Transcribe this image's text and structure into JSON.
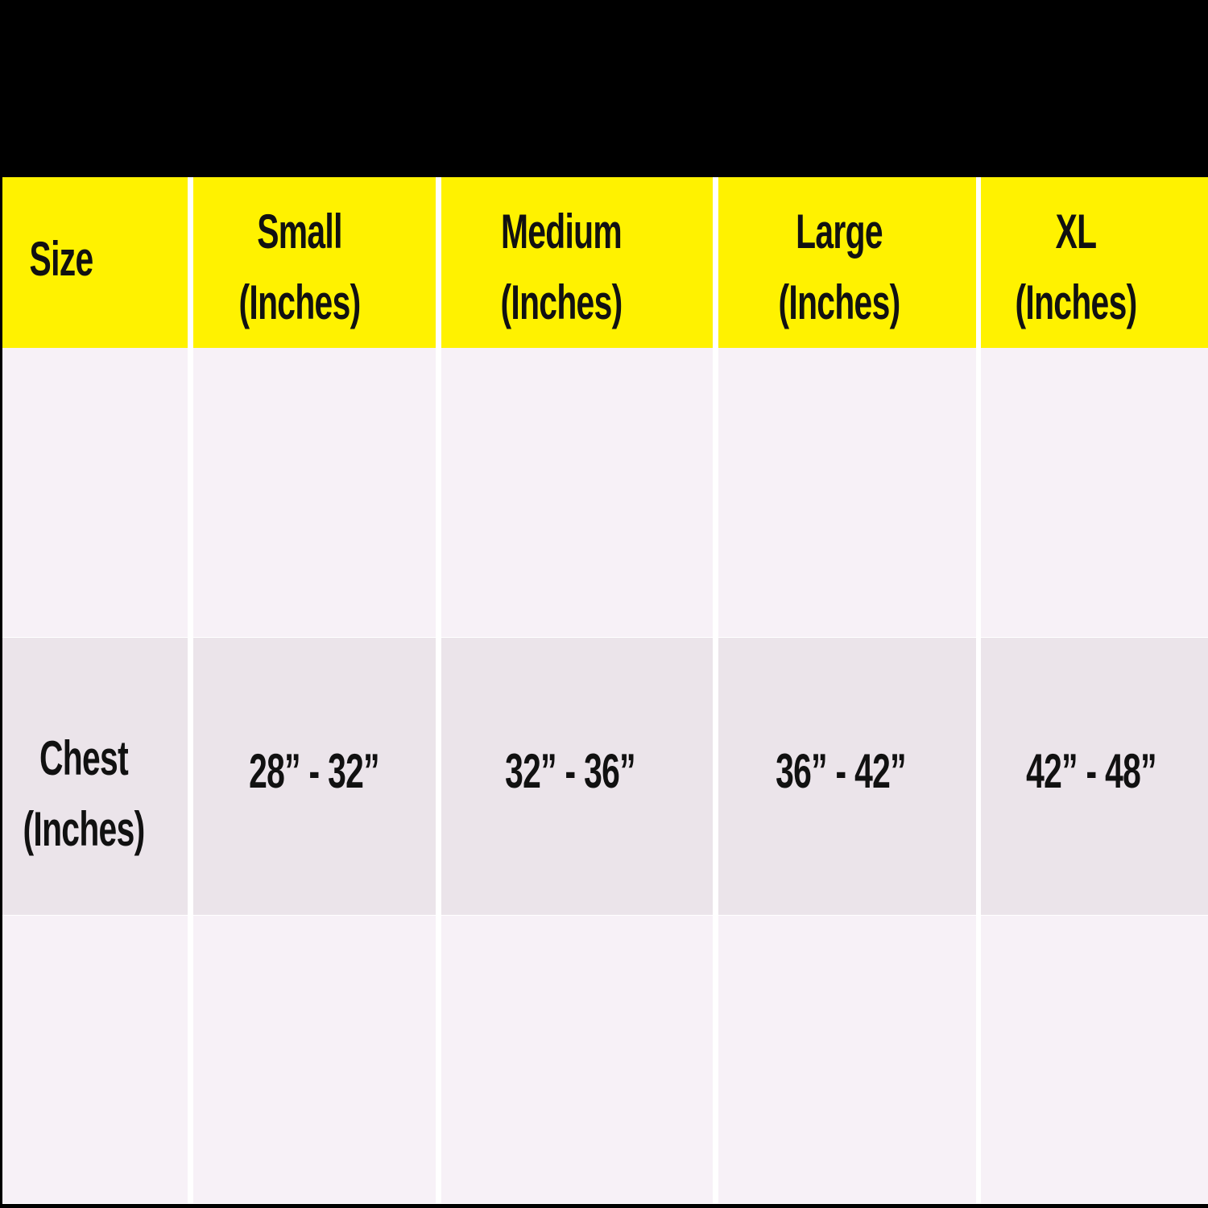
{
  "colors": {
    "header_bg": "#fff200",
    "row_light": "#f7f1f7",
    "row_dark": "#ebe4ea",
    "top_bar": "#000000",
    "text": "#111111"
  },
  "table": {
    "header": [
      "Size",
      "Small\n(Inches)",
      "Medium\n(Inches)",
      "Large\n(Inches)",
      "XL\n(Inches)"
    ],
    "header_lines": [
      [
        "Size"
      ],
      [
        "Small",
        "(Inches)"
      ],
      [
        "Medium",
        "(Inches)"
      ],
      [
        "Large",
        "(Inches)"
      ],
      [
        "XL",
        "(Inches)"
      ]
    ],
    "rows": [
      {
        "label_lines": [],
        "values": [
          "",
          "",
          "",
          ""
        ]
      },
      {
        "label_lines": [
          "Chest",
          "(Inches)"
        ],
        "values": [
          "28” - 32”",
          "32” - 36”",
          "36” - 42”",
          "42” - 48”"
        ]
      },
      {
        "label_lines": [],
        "values": [
          "",
          "",
          "",
          ""
        ]
      }
    ]
  }
}
